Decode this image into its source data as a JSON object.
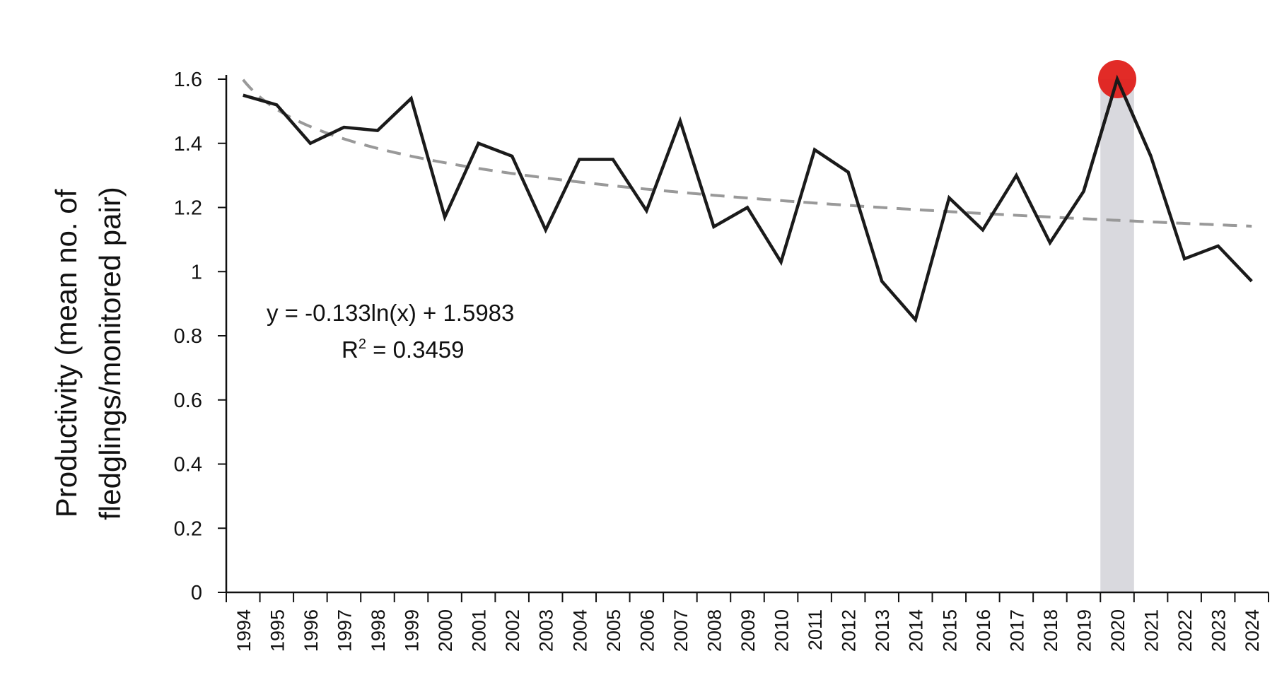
{
  "chart_data": {
    "type": "line",
    "title": "",
    "ylabel_lines": [
      "Productivity (mean no. of",
      "fledglings/monitored pair)"
    ],
    "xlabel": "",
    "ylim": [
      0,
      1.6
    ],
    "ytick_step": 0.2,
    "yticks": [
      "0",
      "0.2",
      "0.4",
      "0.6",
      "0.8",
      "1",
      "1.2",
      "1.4",
      "1.6"
    ],
    "categories": [
      "1994",
      "1995",
      "1996",
      "1997",
      "1998",
      "1999",
      "2000",
      "2001",
      "2002",
      "2003",
      "2004",
      "2005",
      "2006",
      "2007",
      "2008",
      "2009",
      "2010",
      "2011",
      "2012",
      "2013",
      "2014",
      "2015",
      "2016",
      "2017",
      "2018",
      "2019",
      "2020",
      "2021",
      "2022",
      "2023",
      "2024"
    ],
    "series": [
      {
        "values": [
          1.55,
          1.52,
          1.4,
          1.45,
          1.44,
          1.54,
          1.17,
          1.4,
          1.36,
          1.13,
          1.35,
          1.35,
          1.19,
          1.47,
          1.14,
          1.2,
          1.03,
          1.38,
          1.31,
          0.97,
          0.85,
          1.23,
          1.13,
          1.3,
          1.09,
          1.25,
          1.6,
          1.36,
          1.04,
          1.08,
          0.97
        ],
        "color": "#1a1a1a",
        "style": "solid"
      }
    ],
    "trendline": {
      "type": "logarithmic",
      "a": -0.133,
      "b": 1.5983,
      "color": "#999999",
      "style": "dashed",
      "equation": "y = -0.133ln(x) + 1.5983",
      "r2_label": "R",
      "r2_superscript": "2",
      "r2_value": " = 0.3459"
    },
    "highlight": {
      "category": "2020",
      "band_color": "#d9d9de",
      "marker_color": "#e0201b"
    },
    "grid": false,
    "legend": "none"
  }
}
